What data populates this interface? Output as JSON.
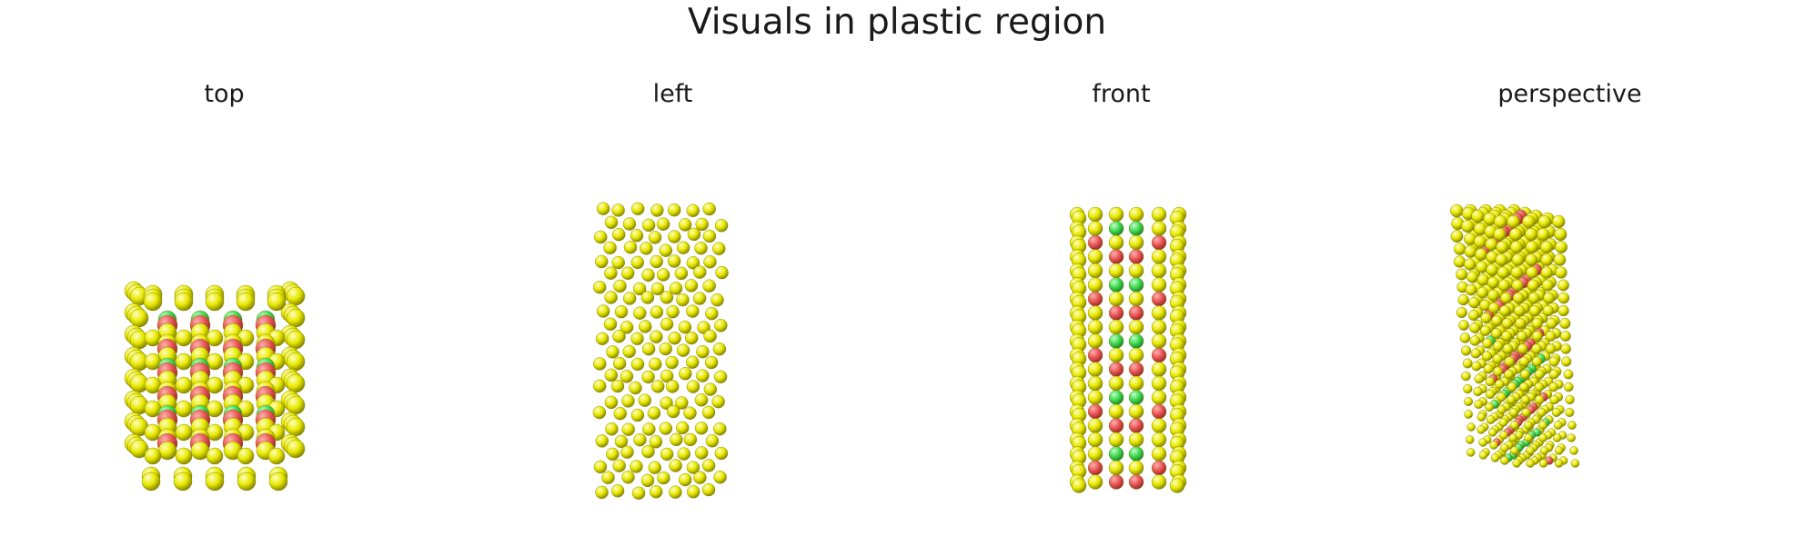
{
  "figure": {
    "title": "Visuals in plastic region",
    "panels": [
      {
        "id": "top",
        "label": "top"
      },
      {
        "id": "left",
        "label": "left"
      },
      {
        "id": "front",
        "label": "front"
      },
      {
        "id": "perspective",
        "label": "perspective"
      }
    ]
  },
  "colors": {
    "background": "#ffffff",
    "atom_yellow": "#e8e800",
    "atom_red": "#e85555",
    "atom_green": "#3fd84f"
  }
}
